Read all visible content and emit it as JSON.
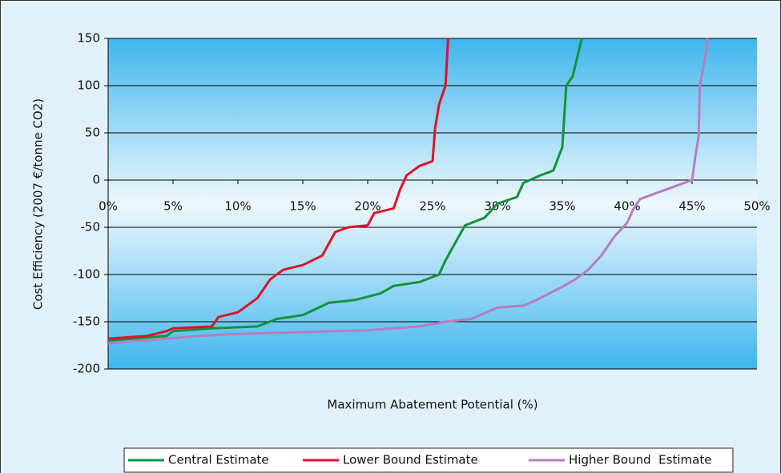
{
  "chart_data": {
    "type": "line",
    "x_label": "Maximum Abatement Potential (%)",
    "y_label": "Cost Efficiency (2007 €/tonne CO2)",
    "xlim": [
      0,
      50
    ],
    "xticks": [
      {
        "value": 0,
        "label": "0%"
      },
      {
        "value": 5,
        "label": "5%"
      },
      {
        "value": 10,
        "label": "10%"
      },
      {
        "value": 15,
        "label": "15%"
      },
      {
        "value": 20,
        "label": "20%"
      },
      {
        "value": 25,
        "label": "25%"
      },
      {
        "value": 30,
        "label": "30%"
      },
      {
        "value": 35,
        "label": "35%"
      },
      {
        "value": 40,
        "label": "40%"
      },
      {
        "value": 45,
        "label": "45%"
      },
      {
        "value": 50,
        "label": "50%"
      }
    ],
    "ylim": [
      -200,
      150
    ],
    "yticks": [
      -200,
      -150,
      -100,
      -50,
      0,
      50,
      100,
      150
    ],
    "grid": true,
    "legend": "bottom",
    "series": [
      {
        "name": "Central Estimate",
        "color": "#13923c",
        "x": [
          0,
          4.5,
          5,
          8,
          11.5,
          13,
          15,
          17,
          19,
          21,
          22,
          24,
          25.5,
          26,
          27.5,
          29,
          30,
          31.5,
          32,
          33.3,
          34.3,
          35,
          35.3,
          35.8,
          36.5
        ],
        "values": [
          -170,
          -165,
          -160,
          -157,
          -155,
          -147,
          -143,
          -130,
          -127,
          -120,
          -112,
          -108,
          -100,
          -85,
          -48,
          -40,
          -25,
          -18,
          -3,
          5,
          10,
          35,
          100,
          110,
          150
        ]
      },
      {
        "name": "Lower Bound Estimate",
        "color": "#e0102a",
        "x": [
          0,
          3,
          4.5,
          5,
          8,
          8.5,
          10,
          11.5,
          12.5,
          13.5,
          15,
          16.5,
          17.5,
          18.5,
          20,
          20.5,
          22,
          22.5,
          23,
          24,
          25,
          25.2,
          25.5,
          26,
          26.2
        ],
        "values": [
          -168,
          -165,
          -160,
          -157,
          -155,
          -145,
          -140,
          -125,
          -105,
          -95,
          -90,
          -80,
          -55,
          -50,
          -48,
          -35,
          -30,
          -10,
          5,
          15,
          20,
          55,
          80,
          100,
          150
        ]
      },
      {
        "name": "Higher Bound  Estimate",
        "color": "#b57ec1",
        "x": [
          0,
          4.5,
          7,
          10,
          15,
          20,
          24,
          26,
          28,
          30,
          32,
          33,
          34,
          35,
          36,
          37,
          38,
          39,
          40,
          40.5,
          41,
          42,
          43,
          44,
          45,
          45.3,
          45.5,
          45.6,
          46,
          46.2
        ],
        "values": [
          -173,
          -168,
          -165,
          -163,
          -161,
          -159,
          -155,
          -150,
          -147,
          -135,
          -133,
          -127,
          -120,
          -113,
          -105,
          -95,
          -80,
          -60,
          -45,
          -30,
          -20,
          -15,
          -10,
          -5,
          0,
          30,
          45,
          100,
          130,
          150
        ]
      }
    ]
  }
}
